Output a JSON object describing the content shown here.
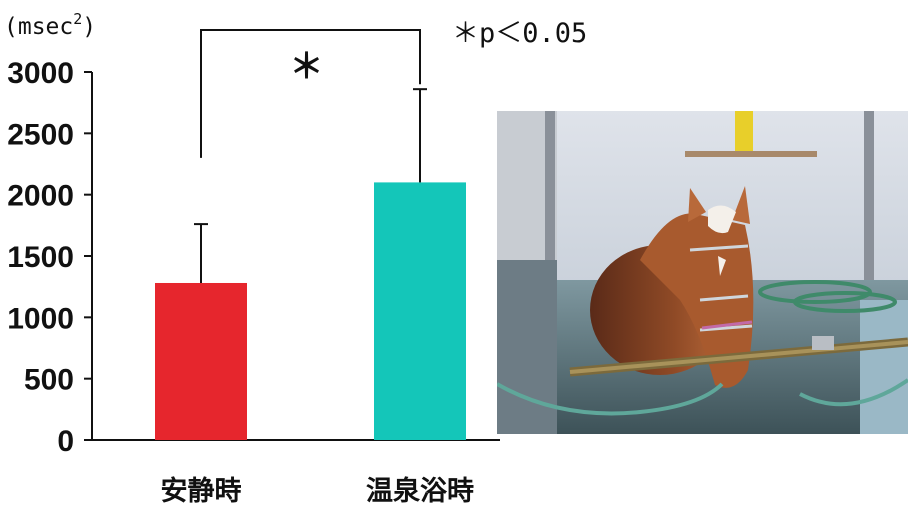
{
  "chart_data": {
    "type": "bar",
    "title": "",
    "xlabel": "",
    "ylabel": "",
    "unit_label": "(msec",
    "unit_superscript": "2",
    "unit_close": ")",
    "categories": [
      "安静時",
      "温泉浴時"
    ],
    "values": [
      1280,
      2100
    ],
    "error_upper": [
      1760,
      2860
    ],
    "colors": [
      "#e6262d",
      "#14c6b9"
    ],
    "ylim": [
      0,
      3000
    ],
    "yticks": [
      "0",
      "500",
      "1000",
      "1500",
      "2000",
      "2500",
      "3000"
    ],
    "grid": false,
    "significance": {
      "marker": "＊",
      "bracket_level": 3140,
      "left_drop": 2300,
      "right_drop": 2900,
      "note": "＊p＜0.05"
    }
  },
  "photo": {
    "description_icon": "horse-in-hot-spring-photo"
  }
}
